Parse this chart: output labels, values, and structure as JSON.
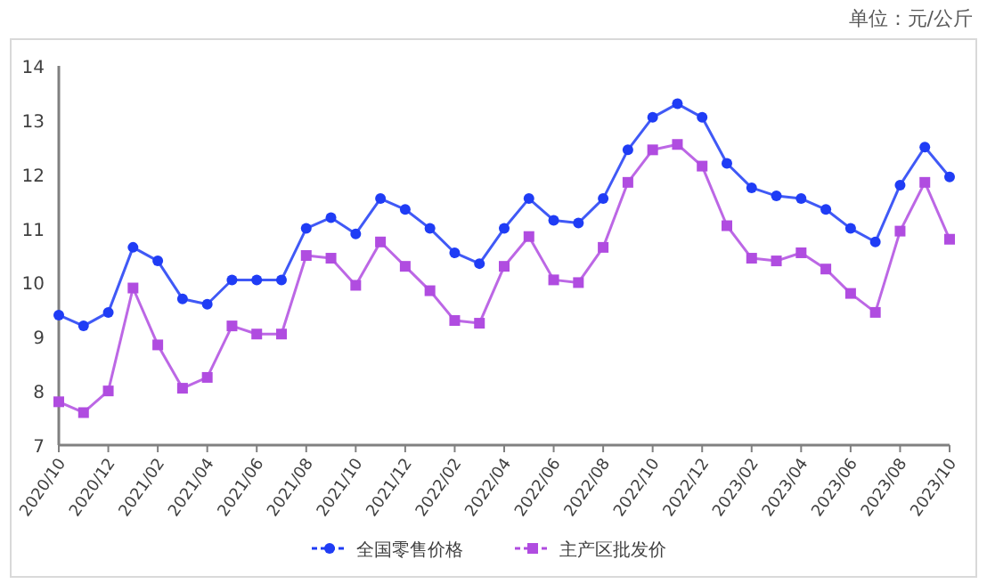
{
  "chart_data": {
    "type": "line",
    "annotations": [
      "单位：元/公斤"
    ],
    "categories": [
      "2020/10",
      null,
      "2020/12",
      null,
      "2021/02",
      null,
      "2021/04",
      null,
      "2021/06",
      null,
      "2021/08",
      null,
      "2021/10",
      null,
      "2021/12",
      null,
      "2022/02",
      null,
      "2022/04",
      null,
      "2022/06",
      null,
      "2022/08",
      null,
      "2022/10",
      null,
      "2022/12",
      null,
      "2023/02",
      null,
      "2023/04",
      null,
      "2023/06",
      null,
      "2023/08",
      null,
      "2023/10"
    ],
    "series": [
      {
        "name": "全国零售价格",
        "color": "#1f3cf5",
        "marker": "circle",
        "values": [
          9.4,
          9.2,
          9.45,
          10.65,
          10.4,
          9.7,
          9.6,
          10.05,
          10.05,
          10.05,
          11.0,
          11.2,
          10.9,
          11.55,
          11.35,
          11.0,
          10.55,
          10.35,
          11.0,
          11.55,
          11.15,
          11.1,
          11.55,
          12.45,
          13.05,
          13.3,
          13.05,
          12.2,
          11.75,
          11.6,
          11.55,
          11.35,
          11.0,
          10.75,
          11.8,
          12.5,
          11.95
        ]
      },
      {
        "name": "主产区批发价",
        "color": "#b04ce0",
        "marker": "square",
        "values": [
          7.8,
          7.6,
          8.0,
          9.9,
          8.85,
          8.05,
          8.25,
          9.2,
          9.05,
          9.05,
          10.5,
          10.45,
          9.95,
          10.75,
          10.3,
          9.85,
          9.3,
          9.25,
          10.3,
          10.85,
          10.05,
          10.0,
          10.65,
          11.85,
          12.45,
          12.55,
          12.15,
          11.05,
          10.45,
          10.4,
          10.55,
          10.25,
          9.8,
          9.45,
          10.95,
          11.85,
          10.8
        ]
      }
    ],
    "ylim": [
      7,
      14
    ],
    "yticks": [
      7,
      8,
      9,
      10,
      11,
      12,
      13,
      14
    ],
    "grid": false,
    "legend": "bottom"
  }
}
